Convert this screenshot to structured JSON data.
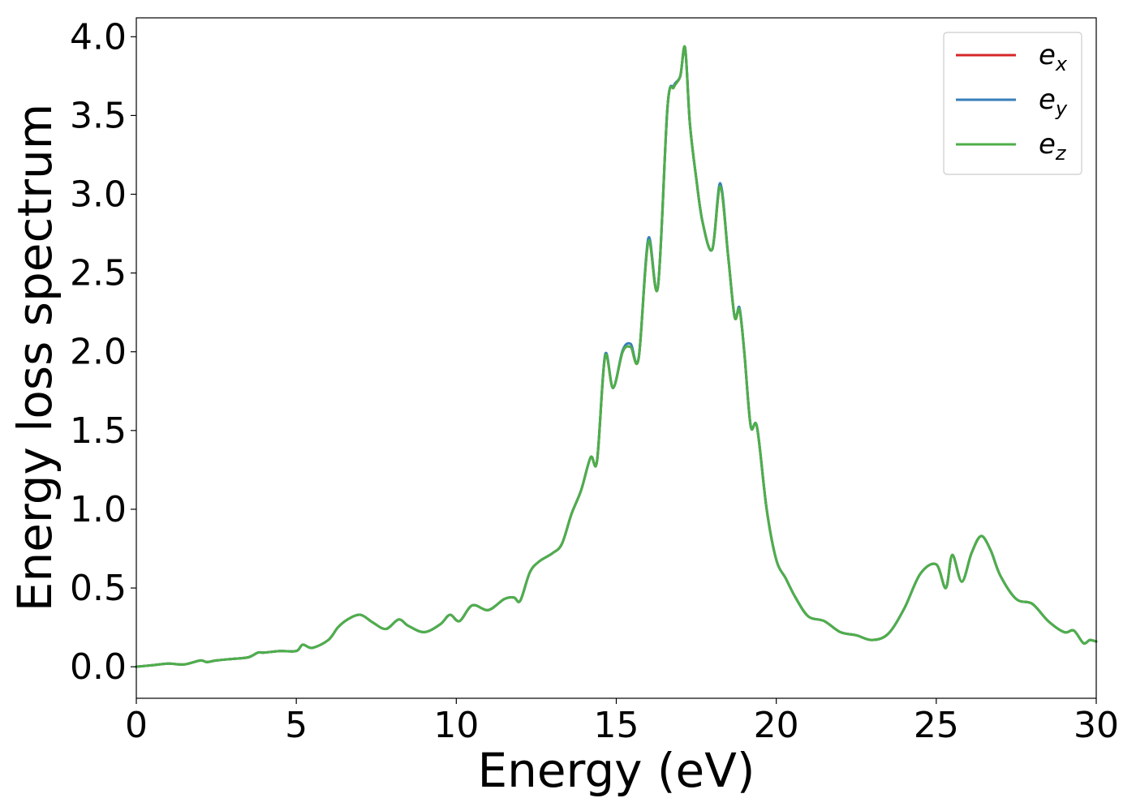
{
  "chart_data": {
    "type": "line",
    "xlabel": "Energy (eV)",
    "ylabel": "Energy loss spectrum",
    "xlim": [
      0,
      30
    ],
    "ylim": [
      -0.2,
      4.12
    ],
    "xticks": [
      0,
      5,
      10,
      15,
      20,
      25,
      30
    ],
    "yticks": [
      0.0,
      0.5,
      1.0,
      1.5,
      2.0,
      2.5,
      3.0,
      3.5,
      4.0
    ],
    "xtick_labels": [
      "0",
      "5",
      "10",
      "15",
      "20",
      "25",
      "30"
    ],
    "ytick_labels": [
      "0.0",
      "0.5",
      "1.0",
      "1.5",
      "2.0",
      "2.5",
      "3.0",
      "3.5",
      "4.0"
    ],
    "grid": false,
    "legend_position": "top-right",
    "series": [
      {
        "name": "e_x",
        "legend_base": "e",
        "legend_sub": "x",
        "color": "#d62728",
        "x": [
          0,
          0.5,
          1.0,
          1.5,
          2.0,
          2.2,
          2.5,
          3.0,
          3.5,
          3.8,
          4.0,
          4.5,
          5.0,
          5.2,
          5.5,
          6.0,
          6.3,
          6.6,
          7.0,
          7.4,
          7.8,
          8.2,
          8.5,
          9.0,
          9.5,
          9.8,
          10.1,
          10.5,
          11.0,
          11.5,
          11.8,
          12.0,
          12.3,
          12.6,
          13.0,
          13.3,
          13.6,
          13.9,
          14.2,
          14.4,
          14.65,
          14.9,
          15.2,
          15.45,
          15.7,
          16.0,
          16.3,
          16.6,
          16.8,
          17.0,
          17.15,
          17.3,
          17.5,
          17.7,
          18.0,
          18.25,
          18.5,
          18.7,
          18.85,
          19.0,
          19.2,
          19.4,
          19.7,
          20.0,
          20.3,
          20.6,
          21.0,
          21.5,
          22.0,
          22.5,
          23.0,
          23.5,
          24.0,
          24.5,
          25.0,
          25.3,
          25.5,
          25.8,
          26.1,
          26.4,
          26.7,
          27.0,
          27.5,
          28.0,
          28.5,
          29.0,
          29.3,
          29.6,
          29.8,
          30.0
        ],
        "y": [
          0.0,
          0.01,
          0.02,
          0.015,
          0.04,
          0.03,
          0.04,
          0.05,
          0.06,
          0.09,
          0.09,
          0.1,
          0.1,
          0.14,
          0.12,
          0.17,
          0.25,
          0.3,
          0.33,
          0.28,
          0.24,
          0.3,
          0.26,
          0.22,
          0.27,
          0.33,
          0.29,
          0.39,
          0.36,
          0.43,
          0.44,
          0.42,
          0.6,
          0.67,
          0.72,
          0.78,
          0.97,
          1.12,
          1.33,
          1.31,
          1.97,
          1.77,
          2.0,
          2.03,
          1.96,
          2.7,
          2.41,
          3.55,
          3.68,
          3.75,
          3.93,
          3.45,
          3.1,
          2.82,
          2.65,
          3.05,
          2.6,
          2.22,
          2.27,
          2.0,
          1.53,
          1.52,
          1.0,
          0.68,
          0.56,
          0.44,
          0.32,
          0.29,
          0.22,
          0.2,
          0.17,
          0.21,
          0.37,
          0.59,
          0.65,
          0.5,
          0.71,
          0.54,
          0.72,
          0.83,
          0.74,
          0.58,
          0.43,
          0.4,
          0.29,
          0.22,
          0.23,
          0.15,
          0.17,
          0.16
        ]
      },
      {
        "name": "e_y",
        "legend_base": "e",
        "legend_sub": "y",
        "color": "#377eb8",
        "x": [
          0,
          0.5,
          1.0,
          1.5,
          2.0,
          2.2,
          2.5,
          3.0,
          3.5,
          3.8,
          4.0,
          4.5,
          5.0,
          5.2,
          5.5,
          6.0,
          6.3,
          6.6,
          7.0,
          7.4,
          7.8,
          8.2,
          8.5,
          9.0,
          9.5,
          9.8,
          10.1,
          10.5,
          11.0,
          11.5,
          11.8,
          12.0,
          12.3,
          12.6,
          13.0,
          13.3,
          13.6,
          13.9,
          14.2,
          14.4,
          14.65,
          14.9,
          15.2,
          15.45,
          15.7,
          16.0,
          16.3,
          16.6,
          16.8,
          17.0,
          17.15,
          17.3,
          17.5,
          17.7,
          18.0,
          18.25,
          18.5,
          18.7,
          18.85,
          19.0,
          19.2,
          19.4,
          19.7,
          20.0,
          20.3,
          20.6,
          21.0,
          21.5,
          22.0,
          22.5,
          23.0,
          23.5,
          24.0,
          24.5,
          25.0,
          25.3,
          25.5,
          25.8,
          26.1,
          26.4,
          26.7,
          27.0,
          27.5,
          28.0,
          28.5,
          29.0,
          29.3,
          29.6,
          29.8,
          30.0
        ],
        "y": [
          0.0,
          0.01,
          0.02,
          0.015,
          0.04,
          0.03,
          0.04,
          0.05,
          0.06,
          0.09,
          0.09,
          0.1,
          0.1,
          0.14,
          0.12,
          0.17,
          0.25,
          0.3,
          0.33,
          0.28,
          0.24,
          0.3,
          0.26,
          0.22,
          0.27,
          0.33,
          0.29,
          0.39,
          0.36,
          0.43,
          0.44,
          0.42,
          0.6,
          0.67,
          0.72,
          0.78,
          0.97,
          1.12,
          1.33,
          1.31,
          1.98,
          1.77,
          2.01,
          2.05,
          1.96,
          2.72,
          2.41,
          3.55,
          3.69,
          3.75,
          3.93,
          3.45,
          3.1,
          2.82,
          2.65,
          3.07,
          2.6,
          2.22,
          2.28,
          2.0,
          1.53,
          1.52,
          1.0,
          0.68,
          0.56,
          0.44,
          0.32,
          0.29,
          0.22,
          0.2,
          0.17,
          0.21,
          0.37,
          0.59,
          0.65,
          0.5,
          0.71,
          0.54,
          0.72,
          0.83,
          0.74,
          0.58,
          0.43,
          0.4,
          0.29,
          0.22,
          0.23,
          0.15,
          0.17,
          0.16
        ]
      },
      {
        "name": "e_z",
        "legend_base": "e",
        "legend_sub": "z",
        "color": "#4daf4a",
        "x": [
          0,
          0.5,
          1.0,
          1.5,
          2.0,
          2.2,
          2.5,
          3.0,
          3.5,
          3.8,
          4.0,
          4.5,
          5.0,
          5.2,
          5.5,
          6.0,
          6.3,
          6.6,
          7.0,
          7.4,
          7.8,
          8.2,
          8.5,
          9.0,
          9.5,
          9.8,
          10.1,
          10.5,
          11.0,
          11.5,
          11.8,
          12.0,
          12.3,
          12.6,
          13.0,
          13.3,
          13.6,
          13.9,
          14.2,
          14.4,
          14.65,
          14.9,
          15.2,
          15.45,
          15.7,
          16.0,
          16.3,
          16.6,
          16.8,
          17.0,
          17.15,
          17.3,
          17.5,
          17.7,
          18.0,
          18.25,
          18.5,
          18.7,
          18.85,
          19.0,
          19.2,
          19.4,
          19.7,
          20.0,
          20.3,
          20.6,
          21.0,
          21.5,
          22.0,
          22.5,
          23.0,
          23.5,
          24.0,
          24.5,
          25.0,
          25.3,
          25.5,
          25.8,
          26.1,
          26.4,
          26.7,
          27.0,
          27.5,
          28.0,
          28.5,
          29.0,
          29.3,
          29.6,
          29.8,
          30.0
        ],
        "y": [
          0.0,
          0.01,
          0.02,
          0.015,
          0.04,
          0.03,
          0.04,
          0.05,
          0.06,
          0.09,
          0.09,
          0.1,
          0.1,
          0.14,
          0.12,
          0.17,
          0.25,
          0.3,
          0.33,
          0.28,
          0.24,
          0.3,
          0.26,
          0.22,
          0.27,
          0.33,
          0.29,
          0.39,
          0.36,
          0.43,
          0.44,
          0.42,
          0.6,
          0.67,
          0.72,
          0.78,
          0.97,
          1.12,
          1.33,
          1.31,
          1.97,
          1.77,
          2.0,
          2.03,
          1.96,
          2.7,
          2.41,
          3.55,
          3.68,
          3.75,
          3.93,
          3.45,
          3.1,
          2.82,
          2.65,
          3.05,
          2.6,
          2.22,
          2.27,
          2.0,
          1.53,
          1.52,
          1.0,
          0.68,
          0.56,
          0.44,
          0.32,
          0.29,
          0.22,
          0.2,
          0.17,
          0.21,
          0.37,
          0.59,
          0.65,
          0.5,
          0.71,
          0.54,
          0.72,
          0.83,
          0.74,
          0.58,
          0.43,
          0.4,
          0.29,
          0.22,
          0.23,
          0.15,
          0.17,
          0.16
        ]
      }
    ]
  }
}
